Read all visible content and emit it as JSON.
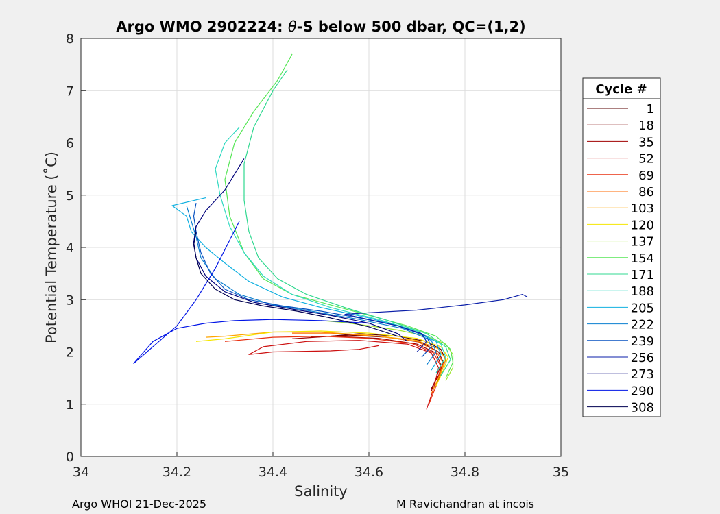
{
  "chart_data": {
    "type": "line",
    "title": "Argo WMO 2902224: θ-S below 500 dbar,  QC=(1,2)",
    "title_prefix": "Argo WMO 2902224: ",
    "title_theta": "θ",
    "title_suffix": "-S below 500 dbar,  QC=(1,2)",
    "xlabel": "Salinity",
    "ylabel": "Potential Temperature (˚C)",
    "xlim": [
      34,
      35
    ],
    "ylim": [
      0,
      8
    ],
    "xticks": [
      "34",
      "34.2",
      "34.4",
      "34.6",
      "34.8",
      "35"
    ],
    "yticks": [
      "0",
      "1",
      "2",
      "3",
      "4",
      "5",
      "6",
      "7",
      "8"
    ],
    "grid": true,
    "legend": {
      "title": "Cycle #",
      "position": "right",
      "entries": [
        "1",
        "18",
        "35",
        "52",
        "69",
        "86",
        "103",
        "120",
        "137",
        "154",
        "171",
        "188",
        "205",
        "222",
        "239",
        "256",
        "273",
        "290",
        "308"
      ]
    },
    "series": [
      {
        "name": "1",
        "color": "#5a0000",
        "x": [
          34.74,
          34.75,
          34.76,
          34.75,
          34.72,
          34.66,
          34.58,
          34.52
        ],
        "y": [
          1.35,
          1.6,
          1.85,
          2.05,
          2.2,
          2.3,
          2.35,
          2.3
        ]
      },
      {
        "name": "18",
        "color": "#7a0000",
        "x": [
          34.73,
          34.745,
          34.755,
          34.745,
          34.71,
          34.64,
          34.56,
          34.48
        ],
        "y": [
          1.3,
          1.55,
          1.8,
          2.0,
          2.18,
          2.28,
          2.32,
          2.28
        ]
      },
      {
        "name": "35",
        "color": "#a00000",
        "x": [
          34.73,
          34.74,
          34.75,
          34.74,
          34.7,
          34.62,
          34.52,
          34.44
        ],
        "y": [
          1.25,
          1.5,
          1.75,
          1.98,
          2.15,
          2.26,
          2.3,
          2.25
        ]
      },
      {
        "name": "52",
        "color": "#cc1010",
        "x": [
          34.72,
          34.735,
          34.745,
          34.73,
          34.68,
          34.58,
          34.47,
          34.38,
          34.35,
          34.4,
          34.52,
          34.58,
          34.62
        ],
        "y": [
          0.9,
          1.3,
          1.7,
          1.98,
          2.15,
          2.22,
          2.2,
          2.1,
          1.95,
          2.0,
          2.02,
          2.05,
          2.12
        ]
      },
      {
        "name": "69",
        "color": "#e83010",
        "x": [
          34.725,
          34.74,
          34.75,
          34.735,
          34.69,
          34.6,
          34.5,
          34.4,
          34.3
        ],
        "y": [
          1.0,
          1.35,
          1.72,
          1.98,
          2.16,
          2.26,
          2.3,
          2.28,
          2.2
        ]
      },
      {
        "name": "86",
        "color": "#ff6a00",
        "x": [
          34.73,
          34.745,
          34.755,
          34.74,
          34.7,
          34.62,
          34.52,
          34.44
        ],
        "y": [
          1.2,
          1.5,
          1.78,
          2.02,
          2.2,
          2.3,
          2.36,
          2.36
        ]
      },
      {
        "name": "103",
        "color": "#ffa500",
        "x": [
          34.735,
          34.75,
          34.76,
          34.745,
          34.7,
          34.6,
          34.5,
          34.4,
          34.3,
          34.26
        ],
        "y": [
          1.3,
          1.6,
          1.86,
          2.06,
          2.22,
          2.32,
          2.38,
          2.38,
          2.3,
          2.28
        ]
      },
      {
        "name": "120",
        "color": "#f5e600",
        "x": [
          34.74,
          34.755,
          34.765,
          34.75,
          34.7,
          34.6,
          34.5,
          34.4,
          34.3,
          34.24
        ],
        "y": [
          1.35,
          1.65,
          1.9,
          2.1,
          2.26,
          2.36,
          2.4,
          2.38,
          2.25,
          2.2
        ]
      },
      {
        "name": "137",
        "color": "#a0e632",
        "x": [
          34.76,
          34.775,
          34.775,
          34.76,
          34.72,
          34.66,
          34.6,
          34.55,
          34.5
        ],
        "y": [
          1.45,
          1.7,
          1.95,
          2.15,
          2.3,
          2.42,
          2.5,
          2.56,
          2.6
        ]
      },
      {
        "name": "154",
        "color": "#55e655",
        "x": [
          34.76,
          34.775,
          34.77,
          34.74,
          34.68,
          34.6,
          34.52,
          34.44,
          34.38,
          34.34,
          34.31,
          34.3,
          34.32,
          34.36,
          34.41,
          34.44
        ],
        "y": [
          1.5,
          1.8,
          2.05,
          2.3,
          2.5,
          2.7,
          2.9,
          3.1,
          3.4,
          3.9,
          4.6,
          5.3,
          6.0,
          6.6,
          7.2,
          7.7
        ]
      },
      {
        "name": "171",
        "color": "#30d890",
        "x": [
          34.75,
          34.77,
          34.76,
          34.72,
          34.64,
          34.55,
          34.47,
          34.41,
          34.37,
          34.35,
          34.34,
          34.34,
          34.36,
          34.4,
          34.43
        ],
        "y": [
          1.55,
          1.85,
          2.1,
          2.35,
          2.6,
          2.85,
          3.1,
          3.4,
          3.8,
          4.3,
          4.9,
          5.6,
          6.3,
          7.0,
          7.4
        ]
      },
      {
        "name": "188",
        "color": "#2ed8c0",
        "x": [
          34.74,
          34.76,
          34.75,
          34.7,
          34.62,
          34.52,
          34.44,
          34.38,
          34.34,
          34.31,
          34.29,
          34.28,
          34.3,
          34.33
        ],
        "y": [
          1.6,
          1.9,
          2.15,
          2.4,
          2.62,
          2.85,
          3.1,
          3.45,
          3.9,
          4.4,
          5.0,
          5.5,
          6.0,
          6.3
        ]
      },
      {
        "name": "205",
        "color": "#10b0e0",
        "x": [
          34.73,
          34.75,
          34.74,
          34.68,
          34.6,
          34.5,
          34.42,
          34.35,
          34.3,
          34.26,
          34.23,
          34.22,
          34.19,
          34.26
        ],
        "y": [
          1.65,
          1.95,
          2.2,
          2.45,
          2.65,
          2.85,
          3.05,
          3.35,
          3.7,
          4.0,
          4.3,
          4.6,
          4.8,
          4.95
        ]
      },
      {
        "name": "222",
        "color": "#0a7fd0",
        "x": [
          34.72,
          34.74,
          34.73,
          34.67,
          34.58,
          34.48,
          34.4,
          34.33,
          34.28,
          34.25,
          34.24,
          34.23,
          34.22
        ],
        "y": [
          1.75,
          2.0,
          2.22,
          2.45,
          2.62,
          2.78,
          2.9,
          3.1,
          3.4,
          3.8,
          4.2,
          4.5,
          4.8
        ]
      },
      {
        "name": "239",
        "color": "#0650c0",
        "x": [
          34.71,
          34.73,
          34.72,
          34.66,
          34.58,
          34.5,
          34.42,
          34.35,
          34.3,
          34.27,
          34.25,
          34.24,
          34.235,
          34.24
        ],
        "y": [
          1.9,
          2.1,
          2.3,
          2.5,
          2.65,
          2.78,
          2.88,
          3.0,
          3.2,
          3.5,
          3.9,
          4.3,
          4.6,
          4.85
        ]
      },
      {
        "name": "256",
        "color": "#0a1ea8",
        "x": [
          34.7,
          34.72,
          34.71,
          34.66,
          34.6,
          34.55,
          34.6,
          34.7,
          34.8,
          34.88,
          34.92,
          34.93
        ],
        "y": [
          2.0,
          2.2,
          2.35,
          2.5,
          2.62,
          2.72,
          2.75,
          2.8,
          2.9,
          3.0,
          3.1,
          3.05
        ]
      },
      {
        "name": "273",
        "color": "#00007a",
        "x": [
          34.68,
          34.66,
          34.6,
          34.52,
          34.44,
          34.36,
          34.3,
          34.26,
          34.24,
          34.235,
          34.24,
          34.26,
          34.3,
          34.34
        ],
        "y": [
          2.2,
          2.35,
          2.55,
          2.7,
          2.82,
          2.95,
          3.15,
          3.45,
          3.8,
          4.1,
          4.4,
          4.7,
          5.1,
          5.7
        ]
      },
      {
        "name": "290",
        "color": "#0014e6",
        "x": [
          34.6,
          34.5,
          34.4,
          34.32,
          34.26,
          34.2,
          34.15,
          34.11,
          34.2,
          34.24,
          34.28,
          34.33
        ],
        "y": [
          2.55,
          2.6,
          2.62,
          2.6,
          2.55,
          2.45,
          2.2,
          1.78,
          2.5,
          3.0,
          3.6,
          4.5
        ]
      },
      {
        "name": "308",
        "color": "#000050",
        "x": [
          34.66,
          34.6,
          34.52,
          34.45,
          34.38,
          34.32,
          34.28,
          34.25,
          34.24,
          34.235,
          34.24
        ],
        "y": [
          2.3,
          2.48,
          2.65,
          2.78,
          2.88,
          3.0,
          3.2,
          3.5,
          3.8,
          4.05,
          4.3
        ]
      }
    ]
  },
  "footer": {
    "left": "Argo WHOI 21-Dec-2025",
    "right": "M Ravichandran at incois"
  }
}
